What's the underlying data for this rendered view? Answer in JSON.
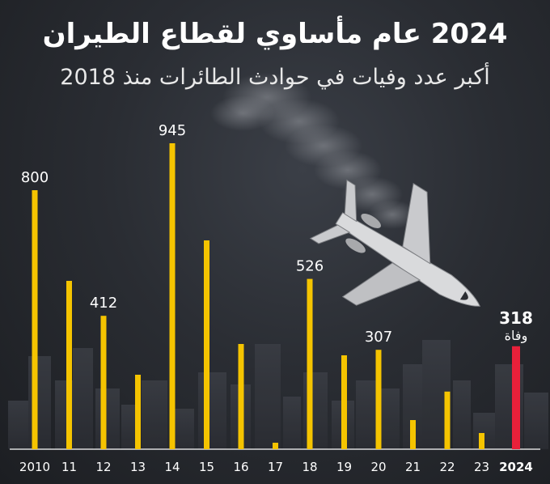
{
  "header": {
    "title": "2024 عام مأساوي لقطاع الطيران",
    "subtitle": "أكبر عدد وفيات في حوادث الطائرات منذ 2018"
  },
  "colors": {
    "bar": "#f5c400",
    "highlight": "#e8203a",
    "text": "#ffffff"
  },
  "chart_data": {
    "type": "bar",
    "title": "2024 عام مأساوي لقطاع الطيران",
    "subtitle": "أكبر عدد وفيات في حوادث الطائرات منذ 2018",
    "categories": [
      "2010",
      "11",
      "12",
      "13",
      "14",
      "15",
      "16",
      "17",
      "18",
      "19",
      "20",
      "21",
      "22",
      "23",
      "2024"
    ],
    "values": [
      800,
      520,
      412,
      230,
      945,
      645,
      325,
      20,
      526,
      290,
      307,
      90,
      178,
      50,
      318
    ],
    "data_labels": [
      "800",
      "",
      "412",
      "",
      "945",
      "",
      "",
      "",
      "526",
      "",
      "307",
      "",
      "",
      "",
      "318"
    ],
    "highlight_index": 14,
    "highlight_unit": "وفاة",
    "ylim": [
      0,
      1000
    ],
    "grid": false,
    "legend": "none"
  }
}
